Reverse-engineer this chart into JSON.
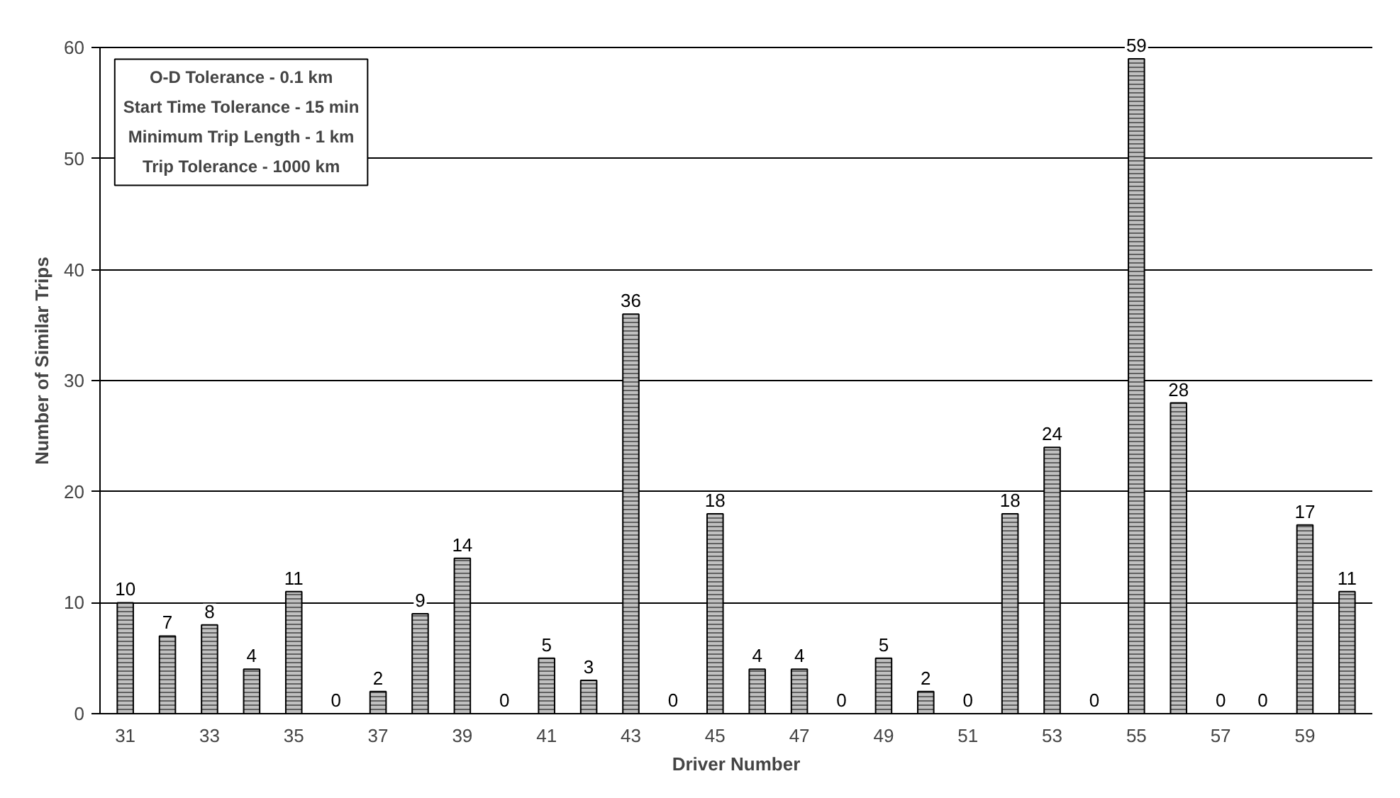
{
  "chart_data": {
    "type": "bar",
    "xlabel": "Driver Number",
    "ylabel": "Number of Similar Trips",
    "categories": [
      "31",
      null,
      "33",
      null,
      "35",
      null,
      "37",
      null,
      "39",
      null,
      "41",
      null,
      "43",
      null,
      "45",
      null,
      "47",
      null,
      "49",
      null,
      "51",
      null,
      "53",
      null,
      "55",
      null,
      "57",
      null,
      "59",
      null
    ],
    "values": [
      10,
      7,
      8,
      4,
      11,
      0,
      2,
      9,
      14,
      0,
      5,
      3,
      36,
      0,
      18,
      4,
      4,
      0,
      5,
      2,
      0,
      18,
      24,
      0,
      59,
      28,
      0,
      0,
      17,
      11
    ],
    "color": "#c0c0c0",
    "ylim": [
      0,
      60
    ],
    "yticks": [
      0,
      10,
      20,
      30,
      40,
      50,
      60
    ],
    "grid": "y",
    "data_labels": true,
    "annotations": [
      "O-D Tolerance - 0.1 km",
      "Start Time Tolerance - 15 min",
      "Minimum Trip Length - 1 km",
      "Trip Tolerance - 1000 km"
    ]
  }
}
